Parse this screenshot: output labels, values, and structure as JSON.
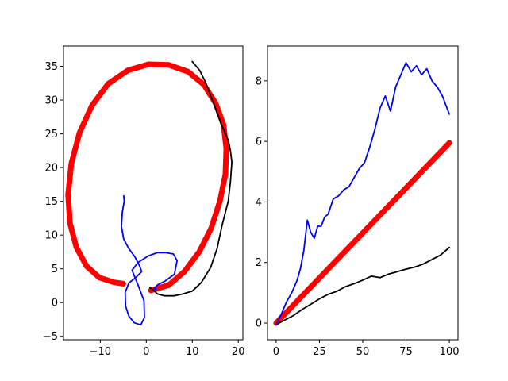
{
  "chart_data": [
    {
      "type": "line",
      "xlim": [
        -18,
        21
      ],
      "ylim": [
        -5.5,
        38
      ],
      "x_ticks": [
        {
          "value": -10,
          "label": "−10"
        },
        {
          "value": 0,
          "label": "0"
        },
        {
          "value": 10,
          "label": "10"
        },
        {
          "value": 20,
          "label": "20"
        }
      ],
      "y_ticks": [
        {
          "value": -5,
          "label": "−5"
        },
        {
          "value": 0,
          "label": "0"
        },
        {
          "value": 5,
          "label": "5"
        },
        {
          "value": 10,
          "label": "10"
        },
        {
          "value": 15,
          "label": "15"
        },
        {
          "value": 20,
          "label": "20"
        },
        {
          "value": 25,
          "label": "25"
        },
        {
          "value": 30,
          "label": "30"
        },
        {
          "value": 35,
          "label": "35"
        }
      ],
      "grid": false,
      "series": [
        {
          "color": "#ff0000",
          "style": "thick",
          "x": [
            1.0,
            4.9,
            8.3,
            11.5,
            14.1,
            16.0,
            17.2,
            17.4,
            16.8,
            15.1,
            12.5,
            9.1,
            4.9,
            0.5,
            -4.0,
            -8.3,
            -11.8,
            -14.5,
            -16.3,
            -17.0,
            -16.6,
            -15.2,
            -13.0,
            -10.2,
            -7.0,
            -5.0
          ],
          "y": [
            1.8,
            2.6,
            4.6,
            7.5,
            11.0,
            15.0,
            19.0,
            22.8,
            26.3,
            29.5,
            32.3,
            34.2,
            35.2,
            35.3,
            34.4,
            32.4,
            29.2,
            25.2,
            20.6,
            16.0,
            11.8,
            8.2,
            5.4,
            3.7,
            3.0,
            2.8
          ]
        },
        {
          "color": "#000000",
          "style": "thin",
          "x": [
            10.0,
            11.6,
            12.9,
            14.2,
            15.3,
            16.2,
            17.1,
            17.9,
            18.3,
            18.6,
            18.3,
            17.8,
            16.5,
            15.4,
            14.0,
            12.0,
            10.0,
            8.0,
            6.0,
            4.0,
            2.4,
            1.6,
            0.8
          ],
          "y": [
            35.7,
            34.4,
            32.6,
            30.3,
            28.3,
            26.6,
            25.2,
            23.9,
            22.4,
            20.8,
            18.0,
            15.0,
            11.5,
            8.0,
            5.2,
            3.0,
            1.7,
            1.3,
            1.0,
            1.0,
            1.3,
            1.8,
            2.2
          ]
        },
        {
          "color": "#0000ff",
          "style": "thin",
          "x": [
            -4.9,
            -4.8,
            -5.2,
            -5.4,
            -4.9,
            -3.8,
            -2.5,
            -1.5,
            -1.0,
            -2.3,
            -3.8,
            -4.6,
            -4.5,
            -3.8,
            -2.6,
            -1.2,
            -0.4,
            -0.5,
            -1.8,
            -3.1,
            -1.7,
            0.4,
            2.4,
            4.2,
            5.9,
            6.7,
            6.1,
            4.1,
            2.4,
            1.7,
            2.1
          ],
          "y": [
            15.8,
            15.0,
            13.5,
            11.3,
            9.4,
            8.0,
            6.8,
            5.5,
            4.6,
            3.7,
            2.9,
            1.5,
            -0.5,
            -2.0,
            -3.0,
            -3.3,
            -2.2,
            0.3,
            2.6,
            4.8,
            6.0,
            6.9,
            7.4,
            7.4,
            7.2,
            6.2,
            4.2,
            3.2,
            2.6,
            2.0,
            2.0
          ]
        }
      ]
    },
    {
      "type": "line",
      "xlim": [
        -5,
        105
      ],
      "ylim": [
        -0.55,
        9.15
      ],
      "x_ticks": [
        {
          "value": 0,
          "label": "0"
        },
        {
          "value": 25,
          "label": "25"
        },
        {
          "value": 50,
          "label": "50"
        },
        {
          "value": 75,
          "label": "75"
        },
        {
          "value": 100,
          "label": "100"
        }
      ],
      "y_ticks": [
        {
          "value": 0,
          "label": "0"
        },
        {
          "value": 2,
          "label": "2"
        },
        {
          "value": 4,
          "label": "4"
        },
        {
          "value": 6,
          "label": "6"
        },
        {
          "value": 8,
          "label": "8"
        }
      ],
      "grid": false,
      "series": [
        {
          "color": "#ff0000",
          "style": "thick",
          "x": [
            0,
            100
          ],
          "y": [
            0,
            5.95
          ]
        },
        {
          "color": "#000000",
          "style": "thin",
          "x": [
            0,
            5,
            10,
            15,
            20,
            25,
            30,
            35,
            40,
            45,
            50,
            55,
            60,
            65,
            70,
            75,
            80,
            85,
            90,
            95,
            100
          ],
          "y": [
            -0.05,
            0.1,
            0.25,
            0.45,
            0.62,
            0.8,
            0.95,
            1.05,
            1.2,
            1.3,
            1.42,
            1.55,
            1.5,
            1.62,
            1.7,
            1.78,
            1.85,
            1.95,
            2.1,
            2.25,
            2.5
          ]
        },
        {
          "color": "#0000ff",
          "style": "thin",
          "x": [
            0,
            3,
            6,
            9,
            12,
            14,
            16,
            18,
            20,
            22,
            24,
            26,
            28,
            30,
            33,
            36,
            39,
            42,
            45,
            48,
            51,
            54,
            57,
            60,
            63,
            66,
            69,
            72,
            75,
            78,
            81,
            84,
            87,
            90,
            93,
            96,
            98,
            100
          ],
          "y": [
            -0.05,
            0.3,
            0.7,
            1.0,
            1.4,
            1.8,
            2.4,
            3.4,
            3.0,
            2.8,
            3.2,
            3.2,
            3.5,
            3.6,
            4.1,
            4.2,
            4.4,
            4.5,
            4.8,
            5.1,
            5.3,
            5.8,
            6.4,
            7.1,
            7.5,
            7.0,
            7.8,
            8.2,
            8.6,
            8.3,
            8.5,
            8.2,
            8.4,
            8.0,
            7.8,
            7.5,
            7.2,
            6.9
          ]
        }
      ]
    }
  ]
}
